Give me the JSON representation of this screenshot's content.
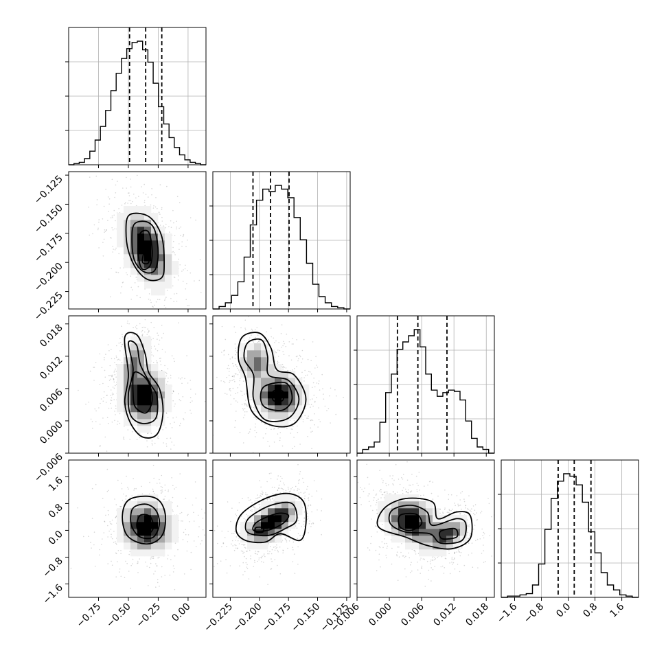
{
  "chart_data": {
    "type": "corner",
    "parameters": [
      {
        "range": [
          -1.0,
          0.15
        ],
        "ticks": [
          -0.75,
          -0.5,
          -0.25,
          0.0
        ],
        "tick_labels": [
          "−0.75",
          "−0.50",
          "−0.25",
          "0.00"
        ],
        "quantiles": [
          -0.49,
          -0.355,
          -0.22
        ],
        "hist": [
          0.0,
          0.01,
          0.02,
          0.05,
          0.11,
          0.2,
          0.31,
          0.44,
          0.6,
          0.74,
          0.86,
          0.94,
          0.99,
          1.0,
          0.93,
          0.83,
          0.66,
          0.47,
          0.33,
          0.22,
          0.14,
          0.08,
          0.04,
          0.02,
          0.01,
          0.0
        ]
      },
      {
        "range": [
          -0.24,
          -0.122
        ],
        "ticks": [
          -0.225,
          -0.2,
          -0.175,
          -0.15,
          -0.125
        ],
        "tick_labels": [
          "−0.225",
          "−0.200",
          "−0.175",
          "−0.150",
          "−0.125"
        ],
        "quantiles": [
          -0.2055,
          -0.1905,
          -0.1745
        ],
        "hist": [
          0.0,
          0.02,
          0.05,
          0.11,
          0.22,
          0.42,
          0.68,
          0.88,
          0.97,
          0.95,
          1.0,
          0.97,
          0.9,
          0.74,
          0.56,
          0.37,
          0.2,
          0.1,
          0.05,
          0.02,
          0.01,
          0.0
        ]
      },
      {
        "range": [
          -0.006,
          0.0195
        ],
        "ticks": [
          -0.006,
          0.0,
          0.006,
          0.012,
          0.018
        ],
        "tick_labels": [
          "−0.006",
          "0.000",
          "0.006",
          "0.012",
          "0.018"
        ],
        "quantiles": [
          0.0015,
          0.0053,
          0.0107
        ],
        "hist": [
          0.0,
          0.03,
          0.05,
          0.09,
          0.25,
          0.49,
          0.64,
          0.84,
          0.9,
          0.95,
          1.0,
          0.86,
          0.64,
          0.51,
          0.46,
          0.49,
          0.51,
          0.5,
          0.43,
          0.26,
          0.12,
          0.05,
          0.03,
          0.0
        ]
      },
      {
        "range": [
          -2.0,
          2.1
        ],
        "ticks": [
          -1.6,
          -0.8,
          0.0,
          0.8,
          1.6
        ],
        "tick_labels": [
          "−1.6",
          "−0.8",
          "0.0",
          "0.8",
          "1.6"
        ],
        "quantiles": [
          -0.3,
          0.18,
          0.68
        ],
        "hist": [
          0.0,
          0.01,
          0.01,
          0.02,
          0.03,
          0.1,
          0.27,
          0.55,
          0.8,
          0.94,
          1.0,
          0.98,
          0.91,
          0.77,
          0.53,
          0.36,
          0.2,
          0.1,
          0.06,
          0.02,
          0.01,
          0.0
        ]
      }
    ],
    "pairs": [
      {
        "x": 0,
        "y": 1,
        "blobs": [
          {
            "cx": -0.35,
            "cy": -0.188,
            "sx": 0.12,
            "sy": 0.019,
            "rho": -0.45,
            "w": 1.0
          }
        ],
        "contours": [
          [
            [
              -0.5,
              -0.16
            ],
            [
              -0.4,
              -0.158
            ],
            [
              -0.3,
              -0.163
            ],
            [
              -0.22,
              -0.178
            ],
            [
              -0.2,
              -0.2
            ],
            [
              -0.22,
              -0.213
            ],
            [
              -0.33,
              -0.215
            ],
            [
              -0.43,
              -0.206
            ],
            [
              -0.5,
              -0.19
            ],
            [
              -0.52,
              -0.173
            ]
          ],
          [
            [
              -0.45,
              -0.167
            ],
            [
              -0.35,
              -0.165
            ],
            [
              -0.28,
              -0.172
            ],
            [
              -0.25,
              -0.192
            ],
            [
              -0.28,
              -0.207
            ],
            [
              -0.37,
              -0.208
            ],
            [
              -0.45,
              -0.198
            ],
            [
              -0.47,
              -0.18
            ]
          ],
          [
            [
              -0.4,
              -0.175
            ],
            [
              -0.33,
              -0.174
            ],
            [
              -0.3,
              -0.19
            ],
            [
              -0.32,
              -0.203
            ],
            [
              -0.39,
              -0.205
            ],
            [
              -0.42,
              -0.19
            ]
          ],
          [
            [
              -0.37,
              -0.192
            ],
            [
              -0.33,
              -0.189
            ],
            [
              -0.33,
              -0.2
            ],
            [
              -0.38,
              -0.2
            ]
          ]
        ]
      },
      {
        "x": 0,
        "y": 2,
        "blobs": [
          {
            "cx": -0.37,
            "cy": 0.0045,
            "sx": 0.11,
            "sy": 0.003,
            "rho": 0.0,
            "w": 1.0
          },
          {
            "cx": -0.44,
            "cy": 0.0115,
            "sx": 0.07,
            "sy": 0.0025,
            "rho": 0.4,
            "w": 0.55
          }
        ],
        "contours": [
          [
            [
              -0.53,
              0.0155
            ],
            [
              -0.43,
              0.016
            ],
            [
              -0.36,
              0.0125
            ],
            [
              -0.33,
              0.009
            ],
            [
              -0.24,
              0.006
            ],
            [
              -0.21,
              0.0015
            ],
            [
              -0.26,
              -0.0025
            ],
            [
              -0.38,
              -0.003
            ],
            [
              -0.48,
              -0.0005
            ],
            [
              -0.53,
              0.0035
            ],
            [
              -0.5,
              0.0085
            ]
          ],
          [
            [
              -0.5,
              0.0145
            ],
            [
              -0.43,
              0.014
            ],
            [
              -0.4,
              0.0105
            ],
            [
              -0.32,
              0.007
            ],
            [
              -0.26,
              0.0045
            ],
            [
              -0.27,
              0.0005
            ],
            [
              -0.38,
              -0.0005
            ],
            [
              -0.48,
              0.001
            ],
            [
              -0.5,
              0.005
            ],
            [
              -0.46,
              0.0095
            ]
          ],
          [
            [
              -0.45,
              0.009
            ],
            [
              -0.34,
              0.0075
            ],
            [
              -0.3,
              0.004
            ],
            [
              -0.35,
              0.0015
            ],
            [
              -0.44,
              0.0025
            ],
            [
              -0.46,
              0.005
            ]
          ],
          [
            [
              -0.4,
              0.0055
            ],
            [
              -0.35,
              0.0055
            ],
            [
              -0.35,
              0.0035
            ],
            [
              -0.4,
              0.0035
            ]
          ]
        ]
      },
      {
        "x": 1,
        "y": 2,
        "blobs": [
          {
            "cx": -0.183,
            "cy": 0.0047,
            "sx": 0.012,
            "sy": 0.0025,
            "rho": 0.0,
            "w": 1.0
          },
          {
            "cx": -0.203,
            "cy": 0.011,
            "sx": 0.009,
            "sy": 0.0022,
            "rho": 0.0,
            "w": 0.6
          }
        ],
        "contours": [
          [
            [
              -0.215,
              0.0155
            ],
            [
              -0.2,
              0.0163
            ],
            [
              -0.19,
              0.0135
            ],
            [
              -0.185,
              0.0095
            ],
            [
              -0.17,
              0.0085
            ],
            [
              -0.16,
              0.004
            ],
            [
              -0.17,
              -0.0005
            ],
            [
              -0.19,
              -0.0008
            ],
            [
              -0.207,
              0.002
            ],
            [
              -0.212,
              0.008
            ],
            [
              -0.218,
              0.0115
            ]
          ],
          [
            [
              -0.21,
              0.0145
            ],
            [
              -0.198,
              0.015
            ],
            [
              -0.193,
              0.012
            ],
            [
              -0.192,
              0.0085
            ],
            [
              -0.175,
              0.0075
            ],
            [
              -0.166,
              0.004
            ],
            [
              -0.175,
              0.0005
            ],
            [
              -0.195,
              0.0002
            ],
            [
              -0.205,
              0.004
            ],
            [
              -0.205,
              0.0085
            ],
            [
              -0.213,
              0.0115
            ]
          ],
          [
            [
              -0.195,
              0.0065
            ],
            [
              -0.177,
              0.007
            ],
            [
              -0.172,
              0.004
            ],
            [
              -0.18,
              0.002
            ],
            [
              -0.195,
              0.0025
            ],
            [
              -0.199,
              0.0045
            ]
          ],
          [
            [
              -0.188,
              0.0055
            ],
            [
              -0.18,
              0.0055
            ],
            [
              -0.18,
              0.0038
            ],
            [
              -0.188,
              0.0038
            ]
          ]
        ]
      },
      {
        "x": 0,
        "y": 3,
        "blobs": [
          {
            "cx": -0.35,
            "cy": 0.1,
            "sx": 0.13,
            "sy": 0.45,
            "rho": 0.0,
            "w": 1.0
          }
        ],
        "contours": [
          [
            [
              -0.5,
              0.9
            ],
            [
              -0.35,
              1.02
            ],
            [
              -0.24,
              0.88
            ],
            [
              -0.19,
              0.45
            ],
            [
              -0.21,
              -0.1
            ],
            [
              -0.3,
              -0.38
            ],
            [
              -0.42,
              -0.36
            ],
            [
              -0.52,
              -0.1
            ],
            [
              -0.55,
              0.45
            ]
          ],
          [
            [
              -0.45,
              0.7
            ],
            [
              -0.35,
              0.78
            ],
            [
              -0.27,
              0.6
            ],
            [
              -0.24,
              0.2
            ],
            [
              -0.29,
              -0.2
            ],
            [
              -0.4,
              -0.2
            ],
            [
              -0.47,
              0.1
            ],
            [
              -0.48,
              0.45
            ]
          ],
          [
            [
              -0.4,
              0.45
            ],
            [
              -0.32,
              0.42
            ],
            [
              -0.29,
              0.1
            ],
            [
              -0.33,
              -0.1
            ],
            [
              -0.4,
              -0.08
            ],
            [
              -0.43,
              0.15
            ]
          ],
          [
            [
              -0.38,
              0.1
            ],
            [
              -0.34,
              0.1
            ],
            [
              -0.34,
              -0.1
            ],
            [
              -0.38,
              -0.1
            ]
          ]
        ]
      },
      {
        "x": 1,
        "y": 3,
        "blobs": [
          {
            "cx": -0.196,
            "cy": 0.1,
            "sx": 0.01,
            "sy": 0.35,
            "rho": 0.4,
            "w": 1.0
          },
          {
            "cx": -0.18,
            "cy": 0.45,
            "sx": 0.008,
            "sy": 0.3,
            "rho": 0.3,
            "w": 0.8
          }
        ],
        "contours": [
          [
            [
              -0.215,
              0.5
            ],
            [
              -0.195,
              0.95
            ],
            [
              -0.175,
              1.1
            ],
            [
              -0.162,
              0.85
            ],
            [
              -0.16,
              0.2
            ],
            [
              -0.165,
              -0.3
            ],
            [
              -0.182,
              -0.1
            ],
            [
              -0.195,
              -0.35
            ],
            [
              -0.212,
              -0.3
            ],
            [
              -0.22,
              0.0
            ]
          ],
          [
            [
              -0.208,
              0.4
            ],
            [
              -0.19,
              0.75
            ],
            [
              -0.172,
              0.8
            ],
            [
              -0.168,
              0.3
            ],
            [
              -0.178,
              0.05
            ],
            [
              -0.192,
              -0.15
            ],
            [
              -0.208,
              -0.1
            ],
            [
              -0.212,
              0.1
            ]
          ],
          [
            [
              -0.202,
              0.25
            ],
            [
              -0.185,
              0.5
            ],
            [
              -0.175,
              0.45
            ],
            [
              -0.18,
              0.2
            ],
            [
              -0.193,
              0.0
            ],
            [
              -0.205,
              0.0
            ]
          ],
          [
            [
              -0.203,
              0.08
            ],
            [
              -0.197,
              0.08
            ],
            [
              -0.197,
              -0.05
            ],
            [
              -0.203,
              -0.05
            ]
          ]
        ]
      },
      {
        "x": 2,
        "y": 3,
        "blobs": [
          {
            "cx": 0.004,
            "cy": 0.28,
            "sx": 0.0028,
            "sy": 0.42,
            "rho": -0.3,
            "w": 1.0
          },
          {
            "cx": 0.0108,
            "cy": -0.12,
            "sx": 0.0022,
            "sy": 0.3,
            "rho": 0.4,
            "w": 0.75
          }
        ],
        "contours": [
          [
            [
              -0.001,
              0.65
            ],
            [
              0.003,
              0.95
            ],
            [
              0.008,
              0.85
            ],
            [
              0.009,
              0.35
            ],
            [
              0.0125,
              0.55
            ],
            [
              0.015,
              0.45
            ],
            [
              0.015,
              -0.25
            ],
            [
              0.0115,
              -0.55
            ],
            [
              0.007,
              -0.45
            ],
            [
              0.003,
              -0.2
            ],
            [
              -0.002,
              0.1
            ]
          ],
          [
            [
              0.0005,
              0.6
            ],
            [
              0.004,
              0.75
            ],
            [
              0.007,
              0.55
            ],
            [
              0.008,
              0.15
            ],
            [
              0.0125,
              0.35
            ],
            [
              0.0142,
              0.2
            ],
            [
              0.0135,
              -0.3
            ],
            [
              0.0095,
              -0.38
            ],
            [
              0.0075,
              -0.1
            ],
            [
              0.003,
              -0.05
            ],
            [
              0.0002,
              0.2
            ]
          ],
          [
            [
              0.002,
              0.45
            ],
            [
              0.005,
              0.48
            ],
            [
              0.006,
              0.2
            ],
            [
              0.004,
              0.0
            ],
            [
              0.002,
              0.1
            ]
          ],
          [
            [
              0.0095,
              -0.03
            ],
            [
              0.0122,
              0.05
            ],
            [
              0.0125,
              -0.2
            ],
            [
              0.0098,
              -0.25
            ]
          ]
        ]
      }
    ]
  }
}
